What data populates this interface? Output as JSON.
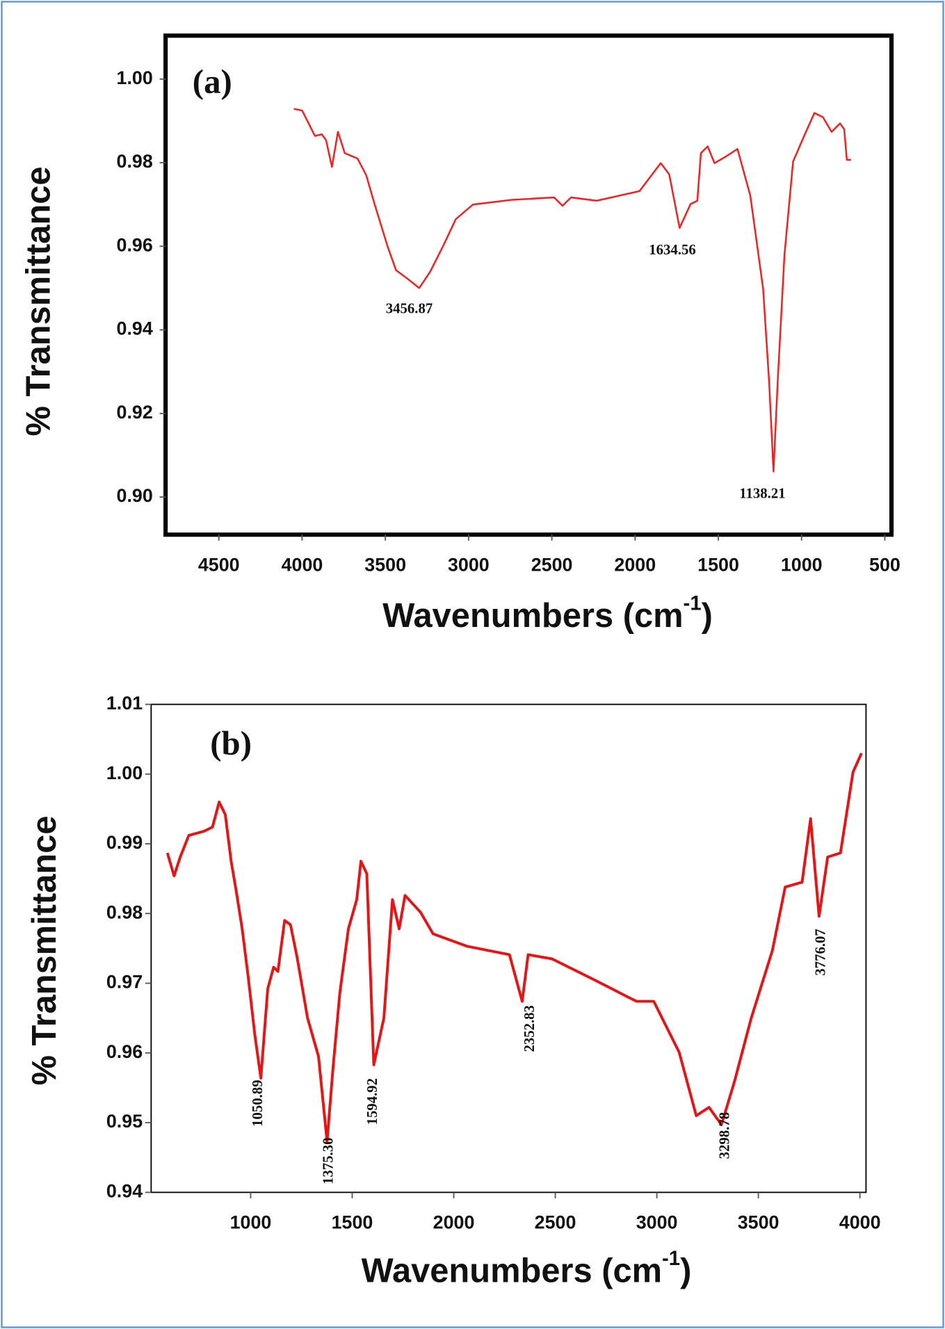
{
  "chart_data": [
    {
      "type": "line",
      "panel": "(a)",
      "color": "#ff1a1a",
      "ylabel": "% Transmittance",
      "xlabel": {
        "text": "Wavenumbers (cm",
        "sup": "-1",
        "end": ")"
      },
      "xlim": [
        4820,
        460
      ],
      "xticks": [
        4500,
        4000,
        3500,
        3000,
        2500,
        2000,
        1500,
        1000,
        500
      ],
      "ylim": [
        0.891,
        1.0104
      ],
      "yticks": [
        {
          "value": 0.9,
          "label": "0.90"
        },
        0.92,
        0.94,
        0.96,
        0.98,
        {
          "value": 1,
          "label": "1.00"
        }
      ],
      "annotations": [
        "3456.87",
        "1634.56",
        "1138.21"
      ],
      "x": [
        4050,
        4000,
        3923,
        3882,
        3856,
        3821,
        3785,
        3744,
        3667,
        3615,
        3564,
        3487,
        3436,
        3359,
        3297,
        3231,
        3154,
        3077,
        2974,
        2744,
        2487,
        2436,
        2385,
        2231,
        1974,
        1846,
        1795,
        1733,
        1667,
        1626,
        1605,
        1564,
        1523,
        1462,
        1385,
        1308,
        1231,
        1195,
        1169,
        1144,
        1103,
        1051,
        974,
        923,
        872,
        820,
        769,
        744,
        728,
        703
      ],
      "values": [
        0.9929,
        0.9925,
        0.9864,
        0.9868,
        0.9854,
        0.979,
        0.9874,
        0.9823,
        0.981,
        0.977,
        0.97,
        0.96,
        0.9543,
        0.952,
        0.95,
        0.9539,
        0.96,
        0.9665,
        0.97,
        0.9711,
        0.9717,
        0.9697,
        0.9717,
        0.9709,
        0.9732,
        0.9799,
        0.9772,
        0.9644,
        0.9701,
        0.9709,
        0.9823,
        0.9839,
        0.9799,
        0.9813,
        0.9833,
        0.9721,
        0.9498,
        0.9274,
        0.9061,
        0.9274,
        0.9579,
        0.9803,
        0.9874,
        0.9919,
        0.9909,
        0.9874,
        0.9894,
        0.988,
        0.9807,
        0.9807
      ]
    },
    {
      "type": "line",
      "panel": "(b)",
      "color": "#ee1111",
      "ylabel": "% Transmittance",
      "xlabel": {
        "text": "Wavenumbers (cm",
        "sup": "-1",
        "end": ")"
      },
      "xlim": [
        510,
        4030
      ],
      "xticks": [
        1000,
        1500,
        2000,
        2500,
        3000,
        3500,
        4000
      ],
      "ylim": [
        0.94,
        1.01
      ],
      "yticks": [
        0.94,
        0.95,
        0.96,
        0.97,
        0.98,
        0.99,
        {
          "value": 1,
          "label": "1.00"
        },
        1.01
      ],
      "annotations": [
        "1050.89",
        "1375.30",
        "1594.92",
        "2352.83",
        "3298.78",
        "3776.07"
      ],
      "x": [
        590,
        623,
        653,
        695,
        770,
        812,
        845,
        875,
        904,
        929,
        958,
        987,
        1021,
        1050,
        1084,
        1113,
        1134,
        1167,
        1196,
        1230,
        1280,
        1334,
        1376,
        1405,
        1439,
        1481,
        1522,
        1543,
        1572,
        1606,
        1656,
        1698,
        1731,
        1760,
        1836,
        1898,
        2066,
        2274,
        2337,
        2366,
        2483,
        2692,
        2859,
        2901,
        2985,
        3110,
        3194,
        3257,
        3318,
        3381,
        3465,
        3569,
        3632,
        3715,
        3757,
        3799,
        3841,
        3904,
        3966,
        4008
      ],
      "values": [
        0.9887,
        0.9854,
        0.9881,
        0.9912,
        0.9918,
        0.9924,
        0.996,
        0.9942,
        0.9875,
        0.9832,
        0.9778,
        0.9711,
        0.9625,
        0.9564,
        0.9692,
        0.9723,
        0.9717,
        0.979,
        0.9784,
        0.9735,
        0.965,
        0.9595,
        0.9473,
        0.9577,
        0.9686,
        0.9778,
        0.982,
        0.9875,
        0.9857,
        0.9583,
        0.965,
        0.982,
        0.9778,
        0.9826,
        0.9802,
        0.9771,
        0.9753,
        0.9741,
        0.9674,
        0.9741,
        0.9735,
        0.9705,
        0.968,
        0.9674,
        0.9674,
        0.9601,
        0.951,
        0.9522,
        0.9497,
        0.9558,
        0.965,
        0.9747,
        0.9838,
        0.9845,
        0.9936,
        0.9796,
        0.9881,
        0.9887,
        1.0003,
        1.003
      ]
    }
  ]
}
